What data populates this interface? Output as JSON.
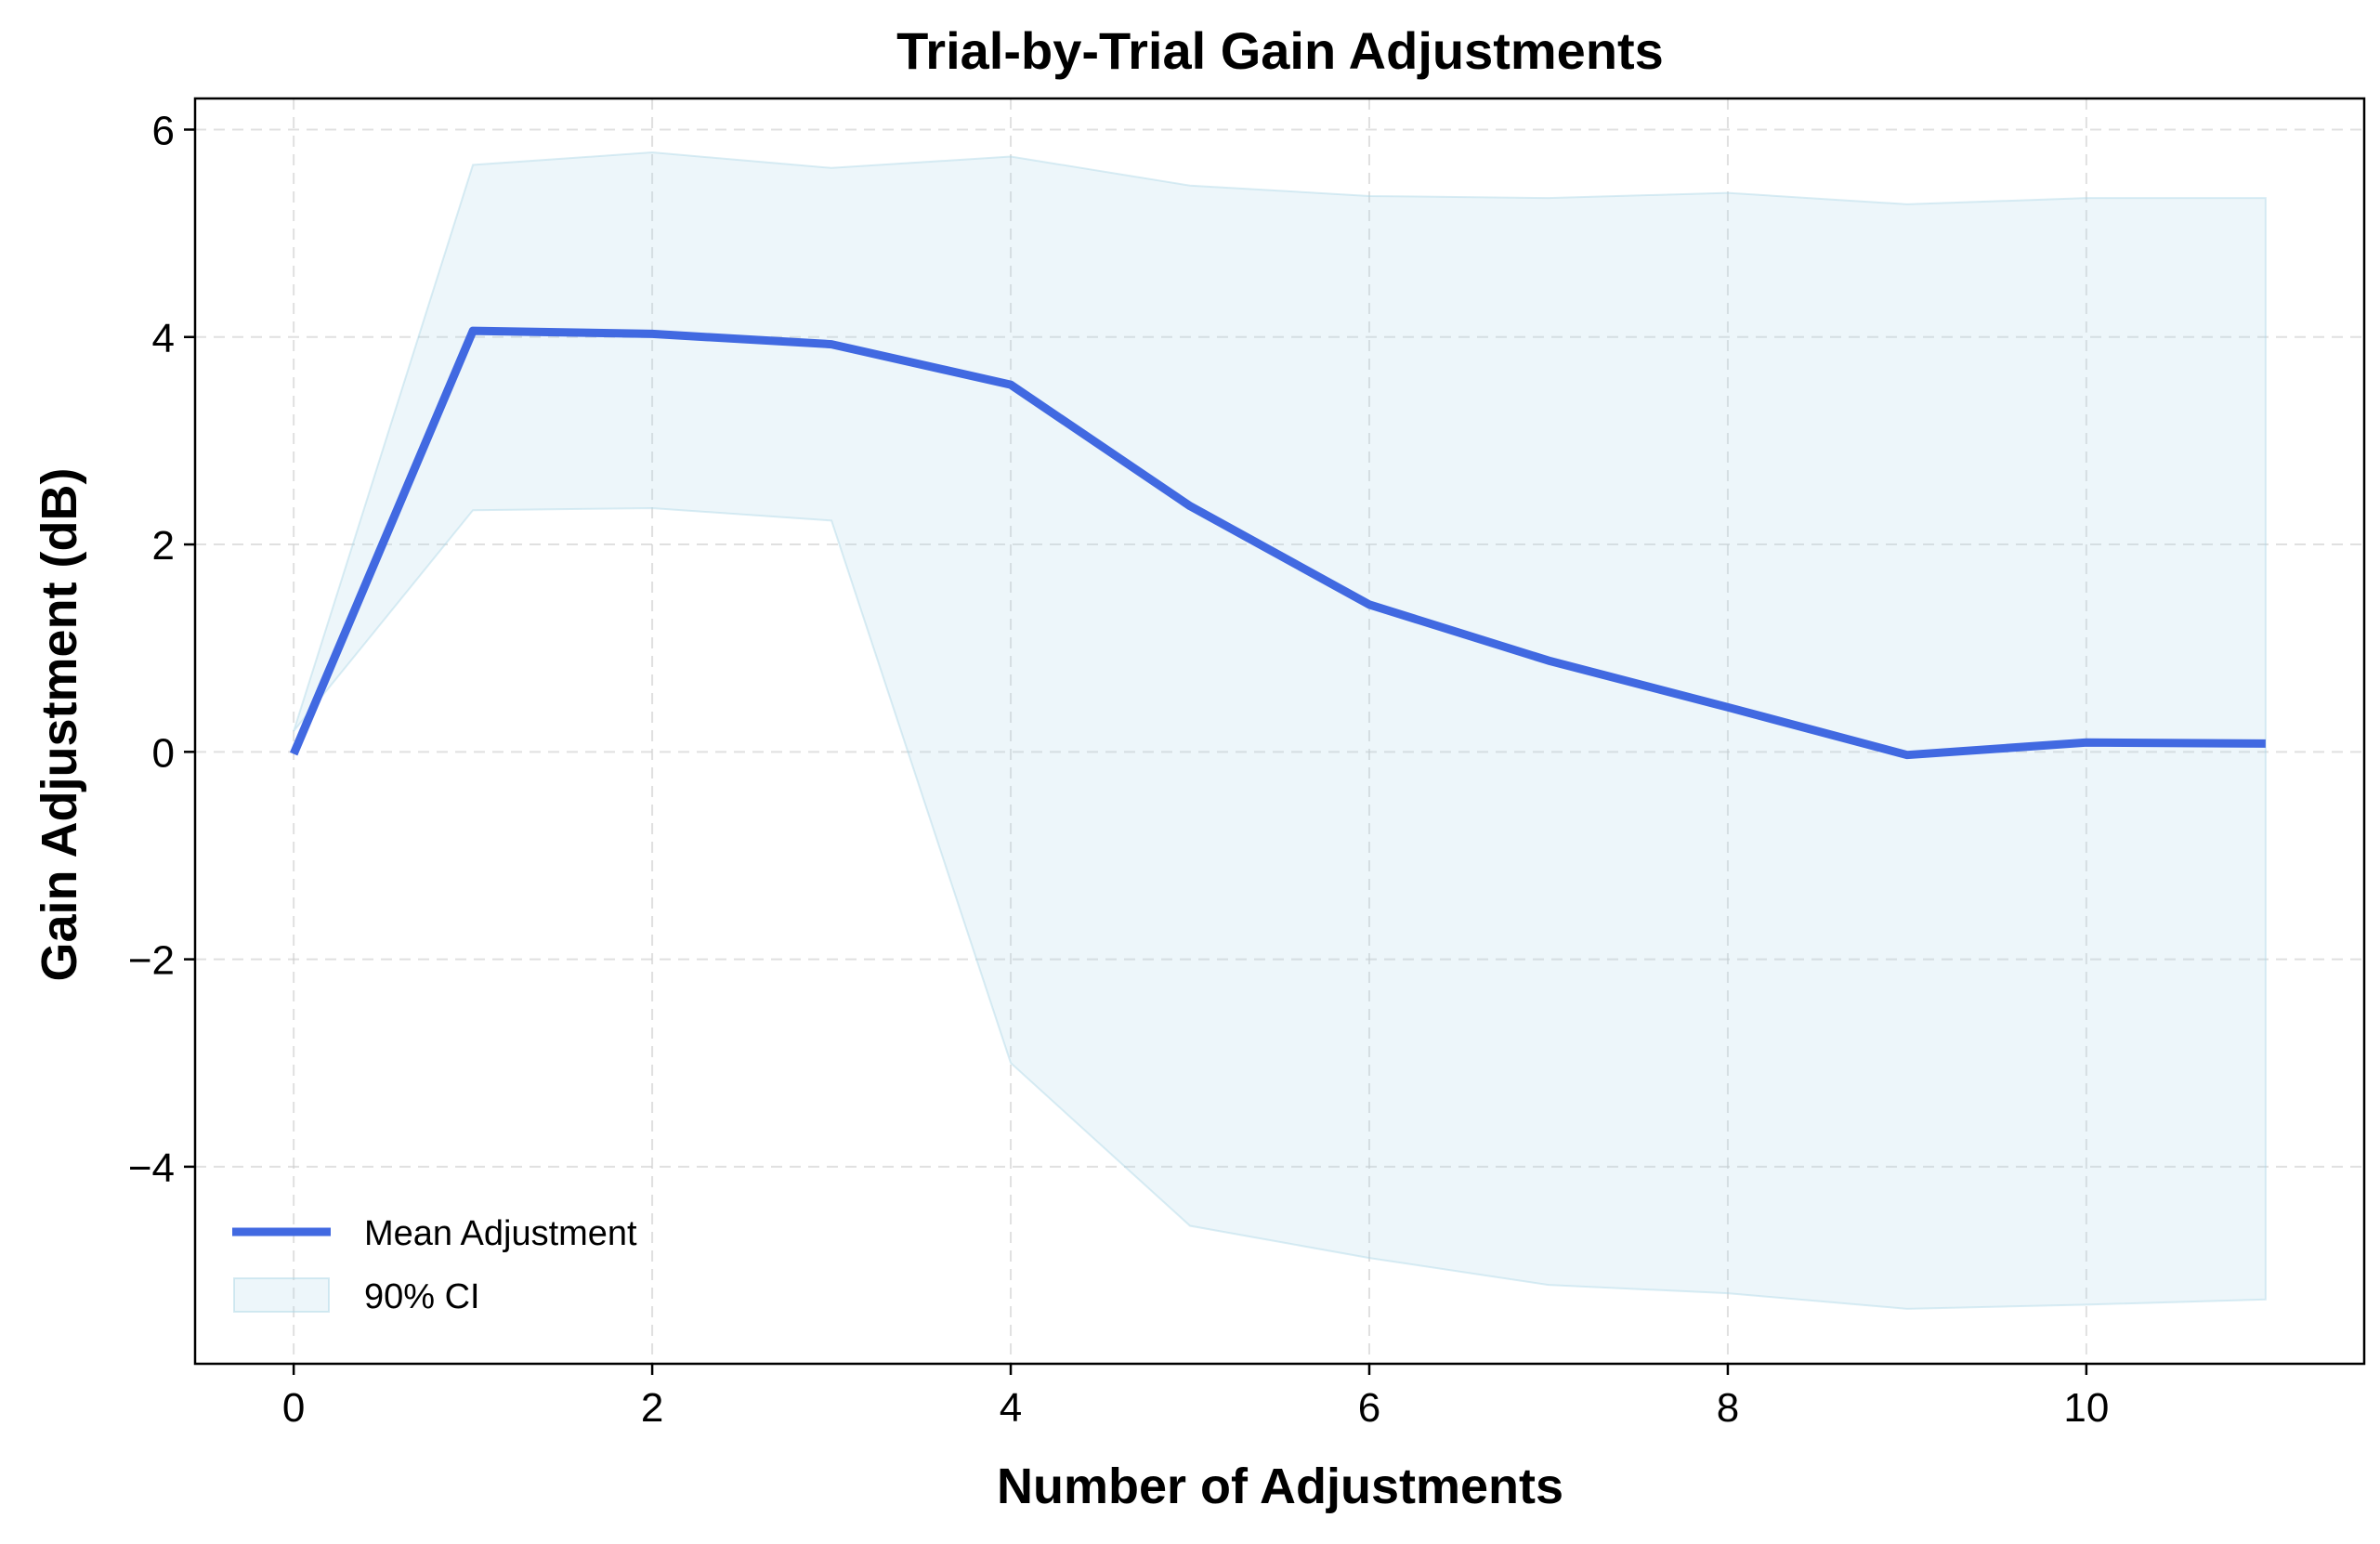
{
  "chart_data": {
    "type": "line",
    "title": "Trial-by-Trial Gain Adjustments",
    "xlabel": "Number of Adjustments",
    "ylabel": "Gain Adjustment (dB)",
    "xlim": [
      -0.55,
      11.55
    ],
    "ylim": [
      -5.9,
      6.3
    ],
    "xticks": [
      0,
      2,
      4,
      6,
      8,
      10
    ],
    "yticks": [
      -4,
      -2,
      0,
      2,
      4,
      6
    ],
    "grid": true,
    "legend_position": "lower-left",
    "x": [
      0,
      1,
      2,
      3,
      4,
      5,
      6,
      7,
      8,
      9,
      10,
      11
    ],
    "series": [
      {
        "name": "Mean Adjustment",
        "kind": "line",
        "color": "#4169E1",
        "values": [
          -0.02,
          4.06,
          4.03,
          3.93,
          3.54,
          2.37,
          1.42,
          0.88,
          0.43,
          -0.03,
          0.09,
          0.08
        ]
      },
      {
        "name": "90% CI",
        "kind": "band",
        "color": "#add8e6",
        "lower": [
          0.2,
          2.33,
          2.35,
          2.23,
          -3.0,
          -4.57,
          -4.88,
          -5.14,
          -5.22,
          -5.37,
          -5.33,
          -5.28
        ],
        "upper": [
          0.2,
          5.66,
          5.78,
          5.63,
          5.74,
          5.46,
          5.36,
          5.34,
          5.39,
          5.28,
          5.34,
          5.34
        ]
      }
    ]
  }
}
